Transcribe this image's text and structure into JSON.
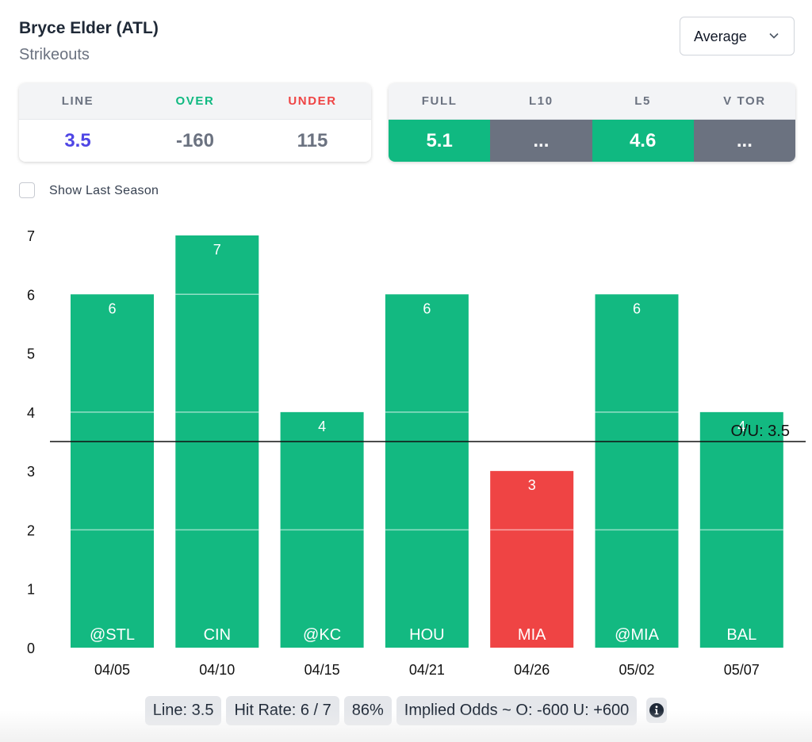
{
  "header": {
    "player": "Bryce Elder (ATL)",
    "stat": "Strikeouts",
    "mode_select": {
      "value": "Average"
    }
  },
  "odds_card": {
    "headers": [
      "LINE",
      "OVER",
      "UNDER"
    ],
    "values": [
      "3.5",
      "-160",
      "115"
    ],
    "header_colors": [
      "#6b7280",
      "#10b981",
      "#ef4444"
    ],
    "value_colors": [
      "#4f46e5",
      "#6b7280",
      "#6b7280"
    ]
  },
  "average_card": {
    "headers": [
      "FULL",
      "L10",
      "L5",
      "V TOR"
    ],
    "values": [
      "5.1",
      "...",
      "4.6",
      "..."
    ],
    "cell_colors": [
      "#10b981",
      "#6b7280",
      "#10b981",
      "#6b7280"
    ]
  },
  "options": {
    "show_last_season_label": "Show Last Season",
    "show_last_season_checked": false
  },
  "colors": {
    "over": "#13b981",
    "under": "#ef4444",
    "neutral": "#6b7280"
  },
  "chart_data": {
    "type": "bar",
    "title": "",
    "xlabel": "",
    "ylabel": "",
    "categories": [
      "04/05",
      "04/10",
      "04/15",
      "04/21",
      "04/26",
      "05/02",
      "05/07"
    ],
    "opponents": [
      "@STL",
      "CIN",
      "@KC",
      "HOU",
      "MIA",
      "@MIA",
      "BAL"
    ],
    "values": [
      6,
      7,
      4,
      6,
      3,
      6,
      4
    ],
    "ylim": [
      0,
      7
    ],
    "yticks": [
      0,
      1,
      2,
      3,
      4,
      5,
      6,
      7
    ],
    "band_lines": [
      2,
      4,
      6
    ],
    "reference_line": {
      "value": 3.5,
      "label": "O/U: 3.5"
    },
    "grid": false,
    "legend": "none"
  },
  "summary": {
    "pills": [
      "Line: 3.5",
      "Hit Rate: 6 / 7",
      "86%",
      "Implied Odds ~ O: -600 U: +600"
    ]
  }
}
